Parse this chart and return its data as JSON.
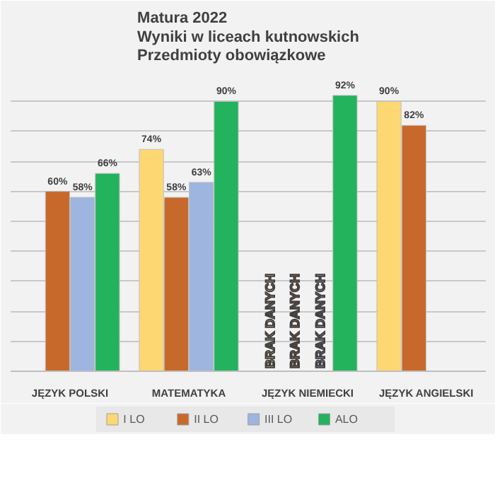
{
  "chart_data": {
    "type": "bar",
    "title": "Matura 2022",
    "subtitle": "Wyniki w liceach kutnowskich\nPrzedmioty obowiązkowe",
    "categories": [
      "JĘZYK POLSKI",
      "MATEMATYKA",
      "JĘZYK NIEMIECKI",
      "JĘZYK ANGIELSKI"
    ],
    "series": [
      {
        "name": "I LO",
        "color": "#fdd872",
        "values": [
          null,
          74,
          null,
          90
        ],
        "value_labels": [
          null,
          "74%",
          null,
          "90%"
        ]
      },
      {
        "name": "II LO",
        "color": "#c8692c",
        "values": [
          60,
          58,
          null,
          82
        ],
        "value_labels": [
          "60%",
          "58%",
          null,
          "82%"
        ]
      },
      {
        "name": "III LO",
        "color": "#9db5df",
        "values": [
          58,
          63,
          null,
          null
        ],
        "value_labels": [
          "58%",
          "63%",
          null,
          null
        ]
      },
      {
        "name": "ALO",
        "color": "#22b35c",
        "values": [
          66,
          90,
          92,
          null
        ],
        "value_labels": [
          "66%",
          "90%",
          "92%",
          null
        ]
      }
    ],
    "annotations": [
      "BRAK DANYCH",
      "BRAK DANYCH",
      "BRAK DANYCH"
    ],
    "ylim": [
      0,
      100
    ],
    "yticks": [
      {
        "value": 10,
        "label": null
      },
      {
        "value": 20,
        "label": null
      },
      {
        "value": 30,
        "label": null
      },
      {
        "value": 40,
        "label": null
      },
      {
        "value": 50,
        "label": null
      },
      {
        "value": 60,
        "label": null
      },
      {
        "value": 70,
        "label": null
      },
      {
        "value": 80,
        "label": null
      },
      {
        "value": 90,
        "label": null
      },
      {
        "value": 100,
        "label": null
      }
    ],
    "tick_labels": "x",
    "grid": "y",
    "legend": "bottom"
  }
}
